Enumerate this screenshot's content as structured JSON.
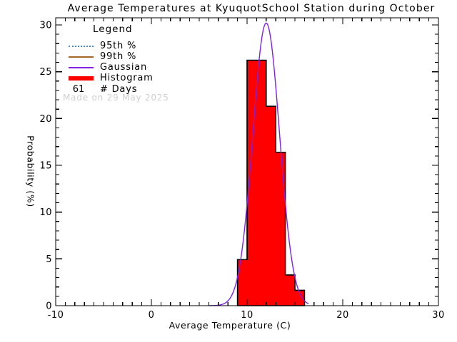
{
  "title": "Average Temperatures at KyuquotSchool Station during October",
  "watermark": "Made on 29 May 2025",
  "legend": {
    "title": "Legend",
    "entries": [
      {
        "label": "95th %",
        "color": "#3d87e0",
        "style": "dotted"
      },
      {
        "label": "99th %",
        "color": "#a3652e",
        "style": "solid"
      },
      {
        "label": "Gaussian",
        "color": "#7f22e0",
        "style": "solid"
      },
      {
        "label": "Histogram",
        "color": "#ff0000",
        "style": "thick"
      }
    ],
    "days_count": "61",
    "days_label": "# Days"
  },
  "chart_data": {
    "type": "bar",
    "title": "Average Temperatures at KyuquotSchool Station during October",
    "xlabel": "Average Temperature (C)",
    "ylabel": "Probability (%)",
    "xlim": [
      -10,
      30
    ],
    "ylim": [
      0,
      30
    ],
    "x_major_ticks": [
      -10,
      0,
      10,
      20,
      30
    ],
    "y_major_ticks": [
      0,
      5,
      10,
      15,
      20,
      25,
      30
    ],
    "minor_tick_step": 1,
    "grid": false,
    "legend_position": "top-left",
    "histogram": {
      "color": "#ff0000",
      "outline_color": "#000000",
      "bin_edges": [
        9,
        10,
        11,
        12,
        13,
        14,
        15,
        16
      ],
      "values_percent": [
        4.92,
        26.23,
        26.23,
        21.31,
        16.39,
        3.28,
        1.64
      ],
      "n_days": 61
    },
    "gaussian": {
      "color": "#7f22e0",
      "mean": 12.0,
      "sigma": 1.4,
      "amplitude": 30.2,
      "x_range": [
        6.0,
        16.45
      ]
    }
  }
}
